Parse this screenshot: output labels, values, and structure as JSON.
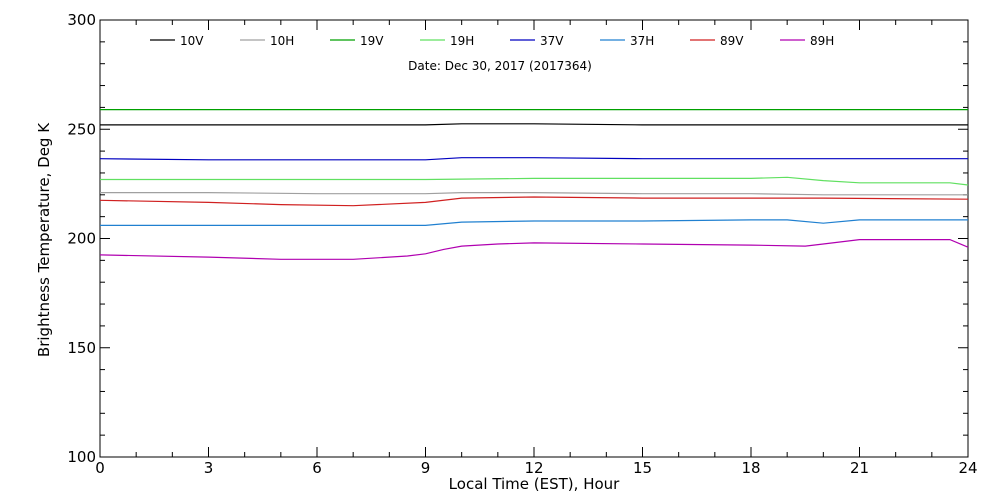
{
  "chart_data": {
    "type": "line",
    "subtitle": "Date: Dec 30, 2017 (2017364)",
    "xlabel": "Local Time (EST), Hour",
    "ylabel": "Brightness Temperature, Deg K",
    "xlim": [
      0,
      24
    ],
    "ylim": [
      100,
      300
    ],
    "xticks": [
      0,
      3,
      6,
      9,
      12,
      15,
      18,
      21,
      24
    ],
    "yticks": [
      100,
      150,
      200,
      250,
      300
    ],
    "grid": false,
    "legend_position": "top",
    "series": [
      {
        "name": "10V",
        "color": "#000000",
        "x": [
          0,
          3,
          6,
          9,
          10,
          12,
          15,
          18,
          20,
          24
        ],
        "y": [
          252,
          252,
          252,
          252,
          252.5,
          252.5,
          252,
          252,
          252,
          252
        ]
      },
      {
        "name": "10H",
        "color": "#a0a0a0",
        "x": [
          0,
          3,
          6,
          9,
          10,
          12,
          15,
          18,
          20,
          24
        ],
        "y": [
          221,
          221,
          220.5,
          220.5,
          221,
          221,
          220.5,
          220.5,
          220,
          220
        ]
      },
      {
        "name": "19V",
        "color": "#00a000",
        "x": [
          0,
          24
        ],
        "y": [
          259,
          259
        ]
      },
      {
        "name": "19H",
        "color": "#60e060",
        "x": [
          0,
          3,
          6,
          9,
          12,
          15,
          18,
          19,
          20,
          21,
          23.5,
          24
        ],
        "y": [
          227,
          227,
          227,
          227,
          227.5,
          227.5,
          227.5,
          228,
          226.5,
          225.5,
          225.5,
          224.5
        ]
      },
      {
        "name": "37V",
        "color": "#0000c0",
        "x": [
          0,
          3,
          6,
          9,
          10,
          12,
          15,
          18,
          20,
          24
        ],
        "y": [
          236.5,
          236,
          236,
          236,
          237,
          237,
          236.5,
          236.5,
          236.5,
          236.5
        ]
      },
      {
        "name": "37H",
        "color": "#2080d0",
        "x": [
          0,
          3,
          6,
          9,
          10,
          12,
          15,
          18,
          19,
          20,
          21,
          24
        ],
        "y": [
          206,
          206,
          206,
          206,
          207.5,
          208,
          208,
          208.5,
          208.5,
          207,
          208.5,
          208.5
        ]
      },
      {
        "name": "89V",
        "color": "#d02020",
        "x": [
          0,
          3,
          5,
          7,
          9,
          10,
          12,
          15,
          18,
          20,
          24
        ],
        "y": [
          217.5,
          216.5,
          215.5,
          215,
          216.5,
          218.5,
          219,
          218.5,
          218.5,
          218.5,
          218
        ]
      },
      {
        "name": "89H",
        "color": "#b000b0",
        "x": [
          0,
          3,
          5,
          7,
          8.5,
          9,
          9.5,
          10,
          11,
          12,
          15,
          18,
          19.5,
          20,
          21,
          22,
          23.5,
          24
        ],
        "y": [
          192.5,
          191.5,
          190.5,
          190.5,
          192,
          193,
          195,
          196.5,
          197.5,
          198,
          197.5,
          197,
          196.5,
          197.5,
          199.5,
          199.5,
          199.5,
          196
        ]
      }
    ]
  }
}
